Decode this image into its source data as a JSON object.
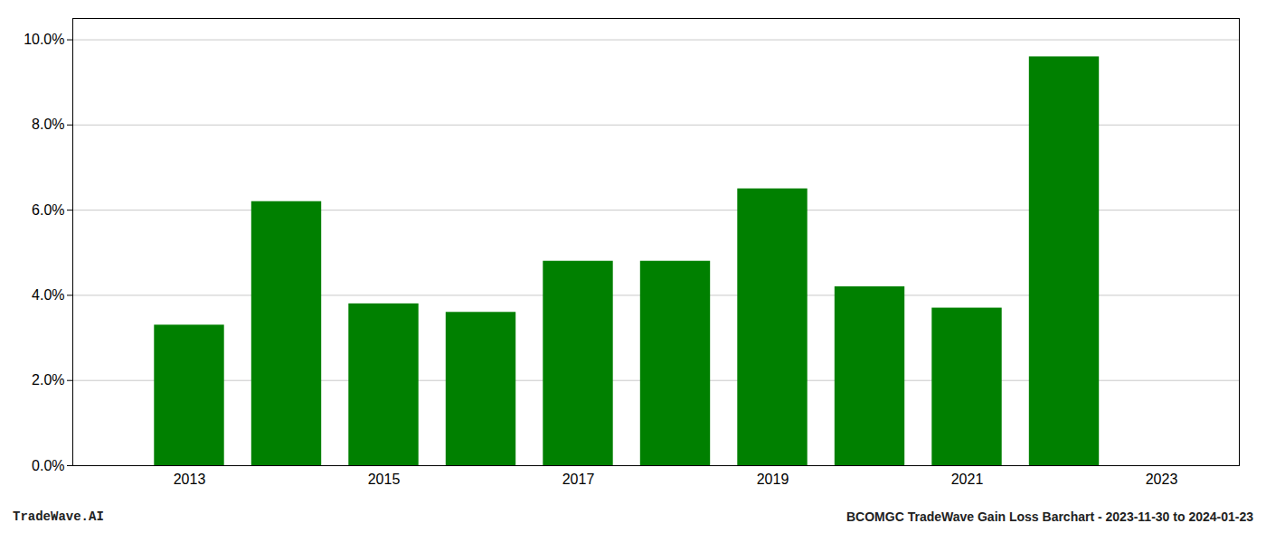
{
  "chart_data": {
    "type": "bar",
    "title": "BCOMGC TradeWave Gain Loss Barchart - 2023-11-30 to 2024-01-23",
    "annotations": [
      "TradeWave.AI"
    ],
    "x": [
      2013,
      2014,
      2015,
      2016,
      2017,
      2018,
      2019,
      2020,
      2021,
      2022
    ],
    "values": [
      0.033,
      0.062,
      0.038,
      0.036,
      0.048,
      0.048,
      0.065,
      0.042,
      0.037,
      0.096
    ],
    "color": "#008000",
    "xlim": [
      2011.8,
      2023.8
    ],
    "xticks": [
      2013,
      2015,
      2017,
      2019,
      2021,
      2023
    ],
    "ylim": [
      0,
      0.105
    ],
    "yticks": [
      {
        "value": 0.0,
        "label": "0.0%"
      },
      {
        "value": 0.02,
        "label": "2.0%"
      },
      {
        "value": 0.04,
        "label": "4.0%"
      },
      {
        "value": 0.06,
        "label": "6.0%"
      },
      {
        "value": 0.08,
        "label": "8.0%"
      },
      {
        "value": 0.1,
        "label": "10.0%"
      }
    ],
    "grid": true
  }
}
